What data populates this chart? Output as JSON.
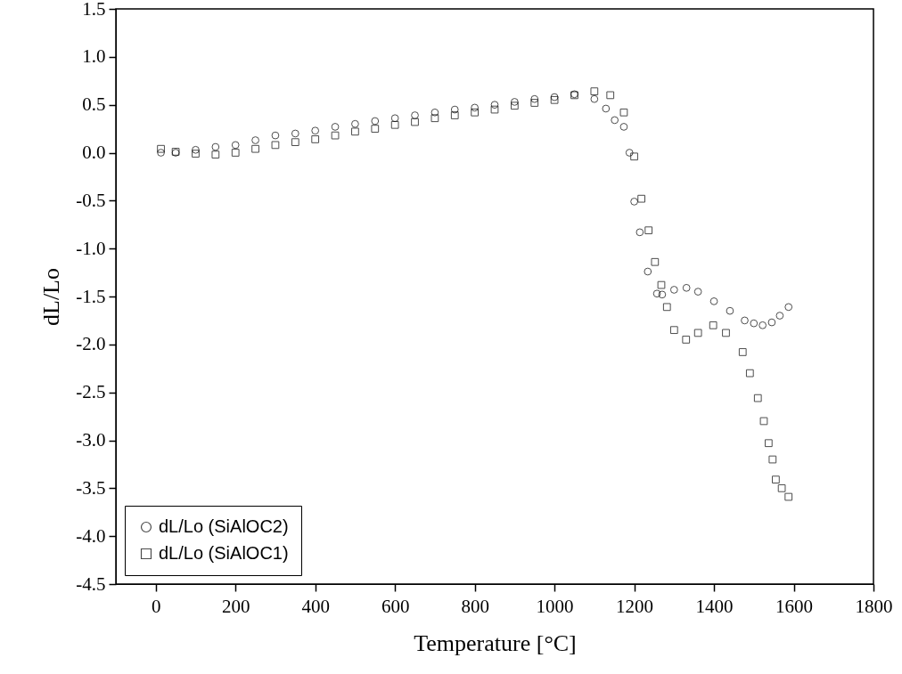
{
  "chart_data": {
    "type": "scatter",
    "xlabel": "Temperature [°C]",
    "ylabel": "dL/Lo",
    "xlim": [
      -100,
      1800
    ],
    "xticks": [
      0,
      200,
      400,
      600,
      800,
      1000,
      1200,
      1400,
      1600,
      1800
    ],
    "ylim": [
      -4.5,
      1.5
    ],
    "yticks": [
      1.5,
      {
        "value": 1,
        "label": "1.0"
      },
      0.5,
      {
        "value": 0,
        "label": "0.0"
      },
      -0.5,
      {
        "value": -1,
        "label": "-1.0"
      },
      -1.5,
      {
        "value": -2,
        "label": "-2.0"
      },
      -2.5,
      {
        "value": -3,
        "label": "-3.0"
      },
      -3.5,
      {
        "value": -4,
        "label": "-4.0"
      },
      -4.5
    ],
    "legend": "bottom left",
    "grid": false,
    "series": [
      {
        "name": "dL/Lo (SiAlOC2)",
        "color": "#000000",
        "marker": "circle",
        "x": [
          13,
          50,
          100,
          150,
          200,
          250,
          300,
          350,
          400,
          450,
          500,
          550,
          600,
          650,
          700,
          750,
          800,
          850,
          900,
          950,
          1000,
          1050,
          1100,
          1129,
          1151,
          1174,
          1188,
          1200,
          1214,
          1234,
          1257,
          1270,
          1300,
          1331,
          1360,
          1400,
          1440,
          1477,
          1500,
          1522,
          1545,
          1565,
          1587
        ],
        "values": [
          0.0,
          0.0,
          0.03,
          0.06,
          0.08,
          0.13,
          0.18,
          0.2,
          0.23,
          0.27,
          0.3,
          0.33,
          0.36,
          0.39,
          0.42,
          0.45,
          0.47,
          0.5,
          0.53,
          0.56,
          0.58,
          0.61,
          0.56,
          0.46,
          0.34,
          0.27,
          0.0,
          -0.51,
          -0.83,
          -1.24,
          -1.47,
          -1.48,
          -1.43,
          -1.41,
          -1.45,
          -1.55,
          -1.65,
          -1.75,
          -1.78,
          -1.8,
          -1.77,
          -1.7,
          -1.61
        ]
      },
      {
        "name": "dL/Lo (SiAlOC1)",
        "color": "#000000",
        "marker": "square",
        "x": [
          13,
          50,
          100,
          150,
          200,
          250,
          300,
          350,
          400,
          450,
          500,
          550,
          600,
          650,
          700,
          750,
          800,
          850,
          900,
          950,
          1000,
          1050,
          1100,
          1140,
          1174,
          1200,
          1218,
          1236,
          1252,
          1268,
          1282,
          1300,
          1330,
          1360,
          1398,
          1430,
          1472,
          1490,
          1510,
          1525,
          1537,
          1547,
          1555,
          1570,
          1587
        ],
        "values": [
          0.04,
          0.01,
          -0.01,
          -0.02,
          0.0,
          0.04,
          0.08,
          0.11,
          0.14,
          0.18,
          0.22,
          0.25,
          0.29,
          0.32,
          0.36,
          0.39,
          0.42,
          0.45,
          0.49,
          0.52,
          0.55,
          0.6,
          0.64,
          0.6,
          0.42,
          -0.04,
          -0.48,
          -0.81,
          -1.14,
          -1.38,
          -1.61,
          -1.85,
          -1.95,
          -1.88,
          -1.8,
          -1.88,
          -2.08,
          -2.3,
          -2.56,
          -2.8,
          -3.03,
          -3.2,
          -3.41,
          -3.5,
          -3.59
        ]
      }
    ]
  }
}
